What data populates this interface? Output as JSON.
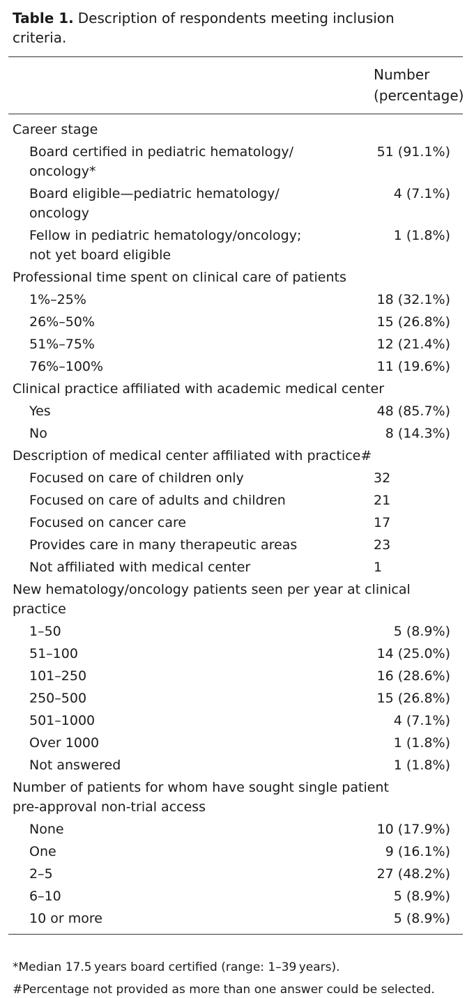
{
  "title": {
    "label": "Table 1.",
    "text": "Description of respondents meeting inclusion\ncriteria."
  },
  "table": {
    "header": "Number\n(percentage)",
    "sections": [
      {
        "label": "Career stage",
        "rows": [
          {
            "label": "Board certified in pediatric hematology/\noncology*",
            "value": "51 (91.1%)"
          },
          {
            "label": "Board eligible—pediatric hematology/\noncology",
            "value": "4 (7.1%)"
          },
          {
            "label": "Fellow in pediatric hematology/oncology;\nnot yet board eligible",
            "value": "1 (1.8%)"
          }
        ]
      },
      {
        "label": "Professional time spent on clinical care of patients",
        "rows": [
          {
            "label": "1%–25%",
            "value": "18 (32.1%)"
          },
          {
            "label": "26%–50%",
            "value": "15 (26.8%)"
          },
          {
            "label": "51%–75%",
            "value": "12 (21.4%)"
          },
          {
            "label": "76%–100%",
            "value": "11 (19.6%)"
          }
        ]
      },
      {
        "label": "Clinical practice affiliated with academic medical center",
        "rows": [
          {
            "label": "Yes",
            "value": "48 (85.7%)"
          },
          {
            "label": "No",
            "value": "8 (14.3%)"
          }
        ]
      },
      {
        "label": "Description of medical center affiliated with practice#",
        "rows": [
          {
            "label": "Focused on care of children only",
            "value": "32"
          },
          {
            "label": "Focused on care of adults and children",
            "value": "21"
          },
          {
            "label": "Focused on cancer care",
            "value": "17"
          },
          {
            "label": "Provides care in many therapeutic areas",
            "value": "23"
          },
          {
            "label": "Not affiliated with medical center",
            "value": "1"
          }
        ]
      },
      {
        "label": "New hematology/oncology patients seen per year at clinical\npractice",
        "rows": [
          {
            "label": "1–50",
            "value": "5 (8.9%)"
          },
          {
            "label": "51–100",
            "value": "14 (25.0%)"
          },
          {
            "label": "101–250",
            "value": "16 (28.6%)"
          },
          {
            "label": "250–500",
            "value": "15 (26.8%)"
          },
          {
            "label": "501–1000",
            "value": "4 (7.1%)"
          },
          {
            "label": "Over 1000",
            "value": "1 (1.8%)"
          },
          {
            "label": "Not answered",
            "value": "1 (1.8%)"
          }
        ]
      },
      {
        "label": "Number of patients for whom have sought single patient\npre-approval non-trial access",
        "rows": [
          {
            "label": "None",
            "value": "10 (17.9%)"
          },
          {
            "label": "One",
            "value": "9 (16.1%)"
          },
          {
            "label": "2–5",
            "value": "27 (48.2%)"
          },
          {
            "label": "6–10",
            "value": "5 (8.9%)"
          },
          {
            "label": "10 or more",
            "value": "5 (8.9%)"
          }
        ]
      }
    ]
  },
  "footnotes": [
    "*Median 17.5 years board certified (range: 1–39 years).",
    "#Percentage not provided as more than one answer could be selected."
  ]
}
